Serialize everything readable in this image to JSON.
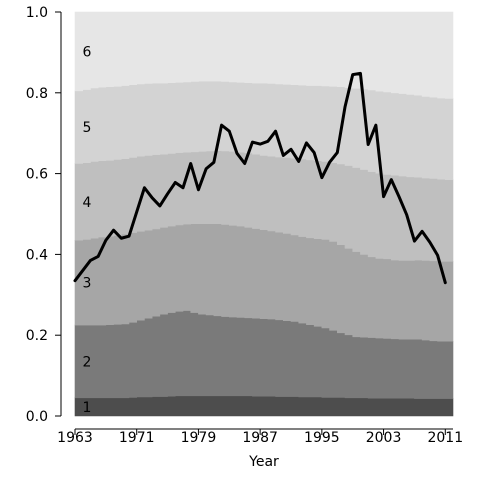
{
  "chart_data": {
    "type": "area",
    "xlabel": "Year",
    "ylabel": "",
    "xlim": [
      1963,
      2012
    ],
    "ylim": [
      0,
      1
    ],
    "x_ticks": [
      1963,
      1971,
      1979,
      1987,
      1995,
      2003,
      2011
    ],
    "y_ticks": [
      "0.0",
      "0.2",
      "0.4",
      "0.6",
      "0.8",
      "1.0"
    ],
    "x": [
      1963,
      1964,
      1965,
      1966,
      1967,
      1968,
      1969,
      1970,
      1971,
      1972,
      1973,
      1974,
      1975,
      1976,
      1977,
      1978,
      1979,
      1980,
      1981,
      1982,
      1983,
      1984,
      1985,
      1986,
      1987,
      1988,
      1989,
      1990,
      1991,
      1992,
      1993,
      1994,
      1995,
      1996,
      1997,
      1998,
      1999,
      2000,
      2001,
      2002,
      2003,
      2004,
      2005,
      2006,
      2007,
      2008,
      2009,
      2010,
      2011
    ],
    "band_labels": [
      "1",
      "2",
      "3",
      "4",
      "5",
      "6"
    ],
    "band_colors": [
      "#4d4d4d",
      "#7a7a7a",
      "#a6a6a6",
      "#bfbfbf",
      "#d3d3d3",
      "#e6e6e6"
    ],
    "boundaries": [
      {
        "name": "1",
        "values": [
          0.045,
          0.045,
          0.045,
          0.045,
          0.045,
          0.045,
          0.045,
          0.046,
          0.047,
          0.047,
          0.048,
          0.048,
          0.049,
          0.05,
          0.05,
          0.05,
          0.05,
          0.05,
          0.05,
          0.05,
          0.05,
          0.05,
          0.05,
          0.049,
          0.049,
          0.049,
          0.048,
          0.048,
          0.048,
          0.047,
          0.047,
          0.047,
          0.046,
          0.046,
          0.046,
          0.045,
          0.045,
          0.045,
          0.044,
          0.044,
          0.044,
          0.044,
          0.044,
          0.044,
          0.043,
          0.043,
          0.043,
          0.043,
          0.043
        ]
      },
      {
        "name": "2",
        "values": [
          0.225,
          0.225,
          0.225,
          0.225,
          0.226,
          0.227,
          0.228,
          0.232,
          0.237,
          0.242,
          0.247,
          0.252,
          0.256,
          0.259,
          0.261,
          0.256,
          0.252,
          0.25,
          0.248,
          0.246,
          0.245,
          0.244,
          0.243,
          0.242,
          0.241,
          0.24,
          0.238,
          0.236,
          0.234,
          0.23,
          0.226,
          0.222,
          0.218,
          0.212,
          0.206,
          0.201,
          0.196,
          0.195,
          0.194,
          0.193,
          0.192,
          0.191,
          0.19,
          0.19,
          0.19,
          0.188,
          0.186,
          0.185,
          0.185
        ]
      },
      {
        "name": "3",
        "values": [
          0.435,
          0.437,
          0.44,
          0.443,
          0.445,
          0.447,
          0.45,
          0.454,
          0.457,
          0.46,
          0.463,
          0.467,
          0.47,
          0.473,
          0.475,
          0.476,
          0.476,
          0.476,
          0.476,
          0.474,
          0.472,
          0.47,
          0.467,
          0.464,
          0.461,
          0.458,
          0.455,
          0.452,
          0.448,
          0.444,
          0.441,
          0.439,
          0.437,
          0.432,
          0.424,
          0.415,
          0.407,
          0.4,
          0.394,
          0.39,
          0.389,
          0.386,
          0.385,
          0.385,
          0.386,
          0.385,
          0.384,
          0.383,
          0.383
        ]
      },
      {
        "name": "4",
        "values": [
          0.625,
          0.627,
          0.63,
          0.632,
          0.633,
          0.635,
          0.637,
          0.64,
          0.643,
          0.645,
          0.647,
          0.648,
          0.65,
          0.652,
          0.653,
          0.654,
          0.655,
          0.656,
          0.657,
          0.656,
          0.655,
          0.653,
          0.651,
          0.648,
          0.645,
          0.643,
          0.641,
          0.64,
          0.638,
          0.636,
          0.634,
          0.632,
          0.63,
          0.627,
          0.624,
          0.62,
          0.615,
          0.61,
          0.605,
          0.601,
          0.598,
          0.596,
          0.594,
          0.592,
          0.591,
          0.589,
          0.588,
          0.586,
          0.585
        ]
      },
      {
        "name": "5",
        "values": [
          0.805,
          0.808,
          0.812,
          0.814,
          0.815,
          0.816,
          0.818,
          0.82,
          0.822,
          0.823,
          0.824,
          0.824,
          0.825,
          0.826,
          0.827,
          0.828,
          0.829,
          0.829,
          0.829,
          0.828,
          0.827,
          0.826,
          0.825,
          0.824,
          0.824,
          0.823,
          0.822,
          0.821,
          0.82,
          0.819,
          0.818,
          0.818,
          0.817,
          0.816,
          0.815,
          0.813,
          0.811,
          0.809,
          0.807,
          0.804,
          0.802,
          0.8,
          0.798,
          0.796,
          0.794,
          0.791,
          0.789,
          0.787,
          0.786
        ]
      },
      {
        "name": "6",
        "values": [
          1,
          1,
          1,
          1,
          1,
          1,
          1,
          1,
          1,
          1,
          1,
          1,
          1,
          1,
          1,
          1,
          1,
          1,
          1,
          1,
          1,
          1,
          1,
          1,
          1,
          1,
          1,
          1,
          1,
          1,
          1,
          1,
          1,
          1,
          1,
          1,
          1,
          1,
          1,
          1,
          1,
          1,
          1,
          1,
          1,
          1,
          1,
          1,
          1
        ]
      }
    ],
    "line_series": {
      "values": [
        0.335,
        0.36,
        0.385,
        0.395,
        0.435,
        0.46,
        0.44,
        0.445,
        0.505,
        0.565,
        0.54,
        0.52,
        0.55,
        0.578,
        0.565,
        0.625,
        0.56,
        0.612,
        0.628,
        0.72,
        0.705,
        0.65,
        0.625,
        0.678,
        0.673,
        0.68,
        0.705,
        0.645,
        0.66,
        0.63,
        0.676,
        0.652,
        0.59,
        0.628,
        0.652,
        0.765,
        0.845,
        0.848,
        0.672,
        0.72,
        0.543,
        0.585,
        0.543,
        0.498,
        0.433,
        0.457,
        0.43,
        0.398,
        0.33
      ],
      "color": "#000000"
    }
  }
}
